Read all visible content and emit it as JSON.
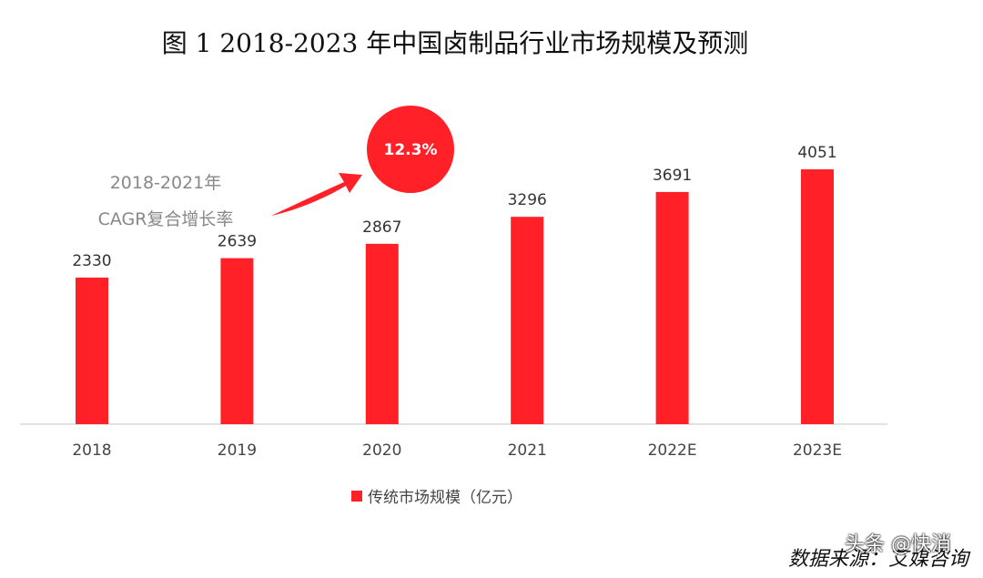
{
  "chart_data": {
    "type": "bar",
    "title": "图 1  2018-2023 年中国卤制品行业市场规模及预测",
    "categories": [
      "2018",
      "2019",
      "2020",
      "2021",
      "2022E",
      "2023E"
    ],
    "series": [
      {
        "name": "传统市场规模（亿元）",
        "values": [
          2330,
          2639,
          2867,
          3296,
          3691,
          4051
        ]
      }
    ],
    "ylim": [
      0,
      4500
    ],
    "legend_position": "bottom",
    "annotation": {
      "line1": "2018-2021年",
      "line2": "CAGR复合增长率",
      "value": "12.3%"
    },
    "colors": {
      "bar": "#ff2127"
    }
  },
  "source": "数据来源：艾媒咨询",
  "watermark": "头条 @快消"
}
